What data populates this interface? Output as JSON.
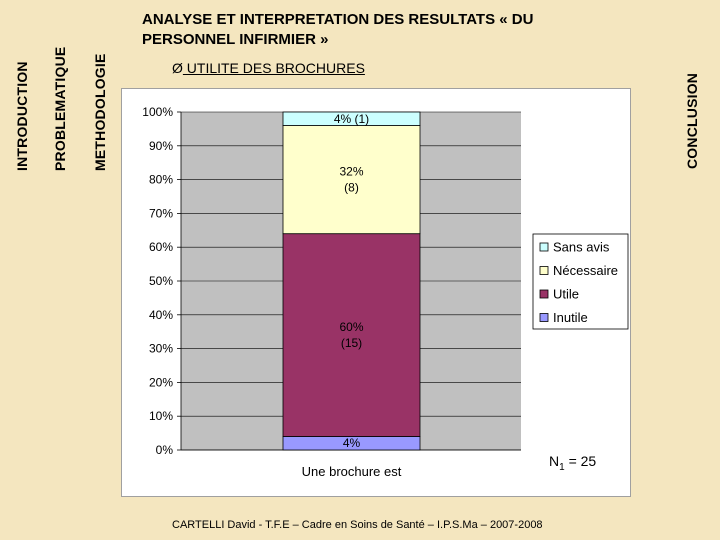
{
  "tabs": {
    "introduction": "INTRODUCTION",
    "problematique": "PROBLEMATIQUE",
    "methodologie": "METHODOLOGIE",
    "conclusion": "CONCLUSION"
  },
  "title": "ANALYSE ET INTERPRETATION DES RESULTATS « DU PERSONNEL INFIRMIER »",
  "subtitle": {
    "bullet": "Ø",
    "label": " UTILITE DES BROCHURES"
  },
  "footer": "CARTELLI David - T.F.E – Cadre en Soins de Santé – I.P.S.Ma – 2007-2008",
  "colors": {
    "background": "#f4e6bf",
    "inutile": "#9999ff",
    "utile": "#993366",
    "necessaire": "#ffffcc",
    "sans_avis": "#ccffff",
    "plot_area": "#c0c0c0"
  },
  "chart_data": {
    "type": "bar",
    "stacked": true,
    "percent": true,
    "categories": [
      "Une brochure est"
    ],
    "xlabel": "Une brochure est",
    "ylim": [
      0,
      100
    ],
    "y_ticks": [
      "0%",
      "10%",
      "20%",
      "30%",
      "40%",
      "50%",
      "60%",
      "70%",
      "80%",
      "90%",
      "100%"
    ],
    "grid": true,
    "legend_position": "right",
    "series": [
      {
        "name": "Inutile",
        "values": [
          4
        ],
        "count": null,
        "label": "4%",
        "color": "#9999ff"
      },
      {
        "name": "Utile",
        "values": [
          60
        ],
        "count": 15,
        "label": "60%",
        "sublabel": "(15)",
        "color": "#993366"
      },
      {
        "name": "Nécessaire",
        "values": [
          32
        ],
        "count": 8,
        "label": "32%",
        "sublabel": "(8)",
        "color": "#ffffcc"
      },
      {
        "name": "Sans avis",
        "values": [
          4
        ],
        "count": 1,
        "label": "4% (1)",
        "color": "#ccffff"
      }
    ],
    "legend_order": [
      "Sans avis",
      "Nécessaire",
      "Utile",
      "Inutile"
    ],
    "annotation": {
      "prefix": "N",
      "subscript": "1",
      "suffix": " = 25"
    }
  }
}
